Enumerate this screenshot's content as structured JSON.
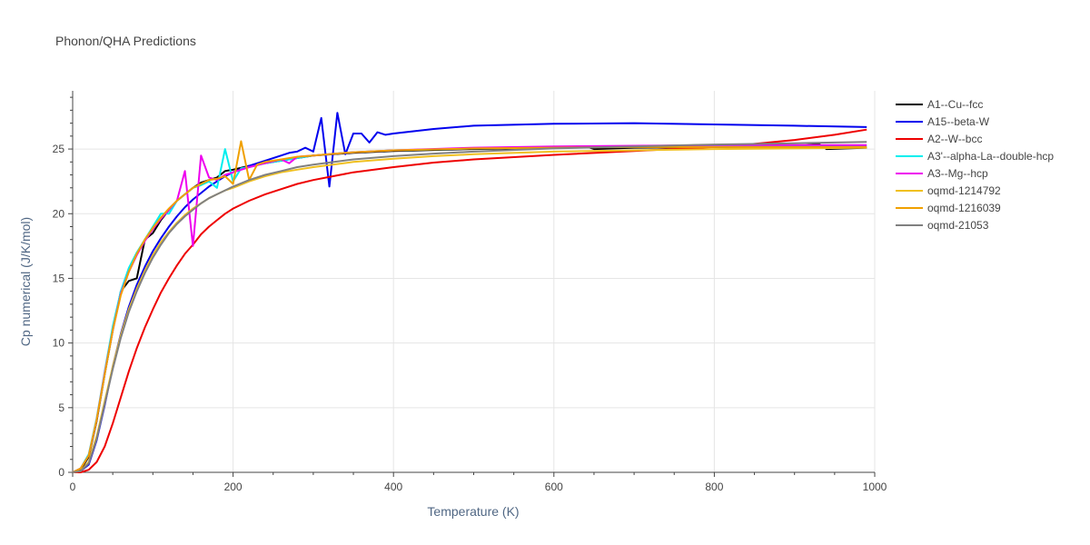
{
  "chart_data": {
    "type": "line",
    "title": "Phonon/QHA Predictions",
    "xlabel": "Temperature (K)",
    "ylabel": "Cp numerical (J/K/mol)",
    "xlim": [
      0,
      1000
    ],
    "ylim": [
      0,
      29.5
    ],
    "xticks": [
      0,
      200,
      400,
      600,
      800,
      1000
    ],
    "yticks": [
      0,
      5,
      10,
      15,
      20,
      25
    ],
    "grid": true,
    "legend_position": "top-right",
    "series": [
      {
        "name": "A1--Cu--fcc",
        "color": "#000000",
        "x": [
          0,
          10,
          20,
          30,
          40,
          50,
          60,
          70,
          80,
          90,
          100,
          110,
          120,
          130,
          140,
          150,
          160,
          170,
          180,
          190,
          200,
          220,
          240,
          260,
          280,
          300,
          350,
          400,
          500,
          600,
          640,
          650,
          700,
          800,
          900,
          930,
          940,
          990
        ],
        "y": [
          0,
          0.2,
          1.2,
          4,
          7.6,
          11,
          14,
          14.8,
          15,
          18,
          18.5,
          19.5,
          20.3,
          21,
          21.5,
          22,
          22.4,
          22.6,
          22.8,
          23.3,
          23.4,
          23.7,
          23.9,
          24.1,
          24.3,
          24.5,
          24.7,
          24.85,
          25.0,
          25.1,
          25.2,
          25.0,
          25.1,
          25.15,
          25.2,
          25.4,
          25.0,
          25.1
        ]
      },
      {
        "name": "A15--beta-W",
        "color": "#0000ee",
        "x": [
          0,
          10,
          20,
          30,
          40,
          50,
          60,
          70,
          80,
          90,
          100,
          110,
          120,
          130,
          140,
          150,
          160,
          170,
          180,
          190,
          200,
          220,
          240,
          260,
          270,
          280,
          290,
          300,
          310,
          320,
          330,
          340,
          350,
          360,
          370,
          380,
          390,
          400,
          450,
          500,
          600,
          700,
          800,
          900,
          990
        ],
        "y": [
          0,
          0.1,
          0.6,
          2.5,
          5.2,
          8.2,
          10.7,
          12.8,
          14.5,
          15.9,
          17.1,
          18.1,
          19,
          19.8,
          20.5,
          21.1,
          21.6,
          22.1,
          22.5,
          22.9,
          23.2,
          23.7,
          24.1,
          24.5,
          24.7,
          24.8,
          25.1,
          24.8,
          27.4,
          22.1,
          27.8,
          24.6,
          26.2,
          26.2,
          25.5,
          26.3,
          26.1,
          26.2,
          26.55,
          26.8,
          26.95,
          27.0,
          26.9,
          26.8,
          26.7
        ]
      },
      {
        "name": "A2--W--bcc",
        "color": "#ee0000",
        "x": [
          0,
          10,
          20,
          30,
          40,
          50,
          60,
          70,
          80,
          90,
          100,
          110,
          120,
          130,
          140,
          150,
          160,
          170,
          180,
          190,
          200,
          220,
          240,
          260,
          280,
          300,
          350,
          400,
          450,
          500,
          600,
          700,
          800,
          850,
          900,
          950,
          990
        ],
        "y": [
          0,
          0,
          0.2,
          0.8,
          2,
          3.8,
          5.8,
          7.8,
          9.6,
          11.2,
          12.6,
          13.9,
          15,
          16,
          16.9,
          17.6,
          18.4,
          19,
          19.5,
          20,
          20.4,
          21,
          21.5,
          21.9,
          22.3,
          22.6,
          23.2,
          23.6,
          23.95,
          24.2,
          24.55,
          24.85,
          25.15,
          25.4,
          25.7,
          26.1,
          26.5
        ]
      },
      {
        "name": "A3'--alpha-La--double-hcp",
        "color": "#00eeee",
        "x": [
          0,
          10,
          20,
          30,
          40,
          50,
          60,
          70,
          80,
          90,
          100,
          110,
          120,
          130,
          140,
          150,
          160,
          170,
          180,
          190,
          200,
          210,
          220,
          240,
          260,
          280,
          300,
          350,
          400,
          500,
          600,
          700,
          800,
          900,
          990
        ],
        "y": [
          0,
          0.3,
          1.4,
          4.2,
          7.8,
          11.3,
          14,
          15.8,
          17,
          18,
          19,
          20,
          20,
          21,
          21.5,
          22,
          22.2,
          22.5,
          22,
          25,
          22.5,
          23.5,
          23.6,
          23.9,
          24.1,
          24.3,
          24.5,
          24.75,
          24.9,
          25.05,
          25.15,
          25.2,
          25.25,
          25.25,
          25.25
        ]
      },
      {
        "name": "A3--Mg--hcp",
        "color": "#ee00ee",
        "x": [
          0,
          10,
          20,
          30,
          40,
          50,
          60,
          70,
          80,
          90,
          100,
          110,
          120,
          130,
          140,
          150,
          160,
          170,
          180,
          190,
          200,
          220,
          240,
          260,
          270,
          280,
          300,
          350,
          400,
          500,
          600,
          700,
          800,
          900,
          990
        ],
        "y": [
          0,
          0.3,
          1.3,
          4.1,
          7.7,
          11,
          13.8,
          15.5,
          16.8,
          17.9,
          18.8,
          19.6,
          20.3,
          21,
          23.3,
          17.5,
          24.5,
          22.8,
          22.6,
          23,
          23.2,
          23.6,
          23.9,
          24.2,
          23.9,
          24.4,
          24.5,
          24.75,
          24.9,
          25.1,
          25.2,
          25.25,
          25.3,
          25.3,
          25.3
        ]
      },
      {
        "name": "oqmd-1214792",
        "color": "#f0c020",
        "x": [
          0,
          10,
          20,
          30,
          40,
          50,
          60,
          70,
          80,
          90,
          100,
          110,
          120,
          130,
          140,
          150,
          160,
          170,
          180,
          190,
          200,
          220,
          240,
          260,
          280,
          300,
          350,
          400,
          450,
          500,
          600,
          700,
          800,
          900,
          990
        ],
        "y": [
          0,
          0.1,
          0.8,
          2.8,
          5.5,
          8.2,
          10.6,
          12.6,
          14.2,
          15.6,
          16.8,
          17.8,
          18.6,
          19.3,
          19.9,
          20.4,
          20.8,
          21.2,
          21.5,
          21.8,
          22,
          22.5,
          22.9,
          23.2,
          23.4,
          23.6,
          24,
          24.25,
          24.45,
          24.6,
          24.8,
          24.9,
          25.0,
          25.05,
          25.1
        ]
      },
      {
        "name": "oqmd-1216039",
        "color": "#f0a000",
        "x": [
          0,
          10,
          20,
          30,
          40,
          50,
          60,
          70,
          80,
          90,
          100,
          110,
          120,
          130,
          140,
          150,
          160,
          170,
          180,
          190,
          200,
          210,
          220,
          230,
          240,
          260,
          280,
          300,
          350,
          400,
          500,
          600,
          700,
          800,
          900,
          990
        ],
        "y": [
          0,
          0.3,
          1.3,
          4.1,
          7.6,
          11,
          13.7,
          15.5,
          16.9,
          18,
          18.9,
          19.7,
          20.4,
          21,
          21.5,
          22,
          22.3,
          22.6,
          22.7,
          22.9,
          22.3,
          25.6,
          22.6,
          23.8,
          24,
          24.2,
          24.4,
          24.5,
          24.75,
          24.9,
          25.05,
          25.1,
          25.15,
          25.15,
          25.15,
          25.15
        ]
      },
      {
        "name": "oqmd-21053",
        "color": "#808080",
        "x": [
          0,
          10,
          20,
          30,
          40,
          50,
          60,
          70,
          80,
          90,
          100,
          110,
          120,
          130,
          140,
          150,
          160,
          170,
          180,
          190,
          200,
          220,
          240,
          260,
          280,
          300,
          350,
          400,
          450,
          500,
          600,
          700,
          800,
          900,
          990
        ],
        "y": [
          0,
          0.1,
          0.7,
          2.6,
          5.3,
          8,
          10.4,
          12.4,
          14,
          15.4,
          16.6,
          17.6,
          18.5,
          19.2,
          19.8,
          20.3,
          20.8,
          21.2,
          21.5,
          21.8,
          22.1,
          22.6,
          23,
          23.3,
          23.6,
          23.8,
          24.2,
          24.45,
          24.65,
          24.8,
          25.05,
          25.2,
          25.35,
          25.45,
          25.55
        ]
      }
    ]
  }
}
